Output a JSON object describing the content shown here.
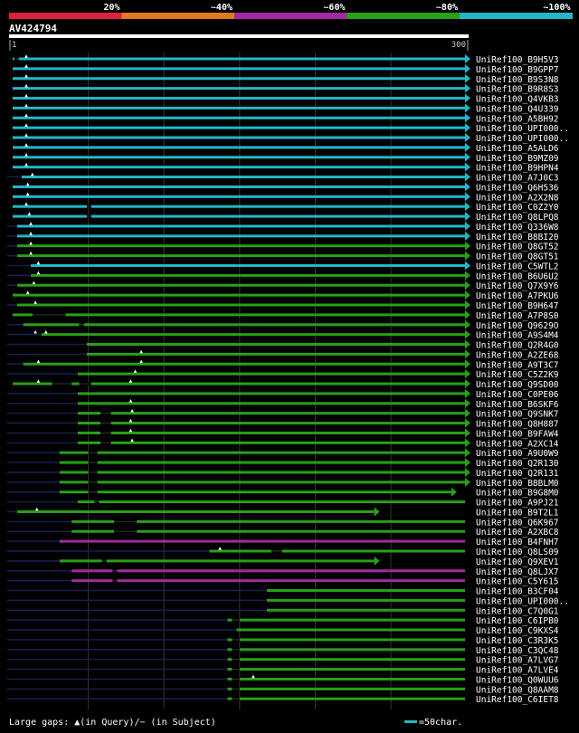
{
  "identity_scale": {
    "labels": [
      "20%",
      "~40%",
      "~60%",
      "~80%",
      "~100%"
    ],
    "colors": [
      "#e0203c",
      "#e07a20",
      "#a02a9e",
      "#28a018",
      "#20b8c8"
    ]
  },
  "query": {
    "name": "AV424794",
    "start": "1",
    "end": "300",
    "length": 300
  },
  "legend": {
    "gaps": "Large gaps: ▲(in Query)/− (in Subject)",
    "scale": "=50char."
  },
  "hits": [
    {
      "name": "UniRef100_B9H5V3",
      "s": 1,
      "e": 300,
      "c": "cyan",
      "a": true,
      "g": [
        [
          2,
          5
        ]
      ],
      "t": [
        10
      ]
    },
    {
      "name": "UniRef100_B9GPP7",
      "s": 1,
      "e": 300,
      "c": "cyan",
      "a": true,
      "g": [],
      "t": [
        10
      ]
    },
    {
      "name": "UniRef100_B9S3N8",
      "s": 1,
      "e": 300,
      "c": "cyan",
      "a": true,
      "g": [],
      "t": [
        10
      ]
    },
    {
      "name": "UniRef100_B9R8S3",
      "s": 1,
      "e": 300,
      "c": "cyan",
      "a": true,
      "g": [],
      "t": [
        10
      ]
    },
    {
      "name": "UniRef100_Q4VKB3",
      "s": 1,
      "e": 300,
      "c": "cyan",
      "a": true,
      "g": [],
      "t": [
        10
      ]
    },
    {
      "name": "UniRef100_Q4U339",
      "s": 1,
      "e": 300,
      "c": "cyan",
      "a": true,
      "g": [],
      "t": [
        10
      ]
    },
    {
      "name": "UniRef100_A5BH92",
      "s": 1,
      "e": 300,
      "c": "cyan",
      "a": true,
      "g": [],
      "t": [
        10
      ]
    },
    {
      "name": "UniRef100_UPI000..",
      "s": 1,
      "e": 300,
      "c": "cyan",
      "a": true,
      "g": [],
      "t": [
        10
      ]
    },
    {
      "name": "UniRef100_UPI000..",
      "s": 1,
      "e": 300,
      "c": "cyan",
      "a": true,
      "g": [],
      "t": [
        10
      ]
    },
    {
      "name": "UniRef100_A5ALD6",
      "s": 1,
      "e": 300,
      "c": "cyan",
      "a": true,
      "g": [],
      "t": [
        10
      ]
    },
    {
      "name": "UniRef100_B9MZ09",
      "s": 1,
      "e": 300,
      "c": "cyan",
      "a": true,
      "g": [],
      "t": [
        10
      ]
    },
    {
      "name": "UniRef100_B9HPN4",
      "s": 1,
      "e": 300,
      "c": "cyan",
      "a": true,
      "g": [],
      "t": [
        10
      ]
    },
    {
      "name": "UniRef100_A7J0C3",
      "s": 7,
      "e": 300,
      "c": "cyan",
      "a": true,
      "g": [],
      "t": [
        14
      ]
    },
    {
      "name": "UniRef100_Q6H536",
      "s": 1,
      "e": 300,
      "c": "cyan",
      "a": true,
      "g": [],
      "t": [
        11
      ]
    },
    {
      "name": "UniRef100_A2X2N8",
      "s": 1,
      "e": 300,
      "c": "cyan",
      "a": true,
      "g": [],
      "t": [
        11
      ]
    },
    {
      "name": "UniRef100_C0Z2Y0",
      "s": 1,
      "e": 300,
      "c": "cyan",
      "a": true,
      "g": [
        [
          50,
          53
        ]
      ],
      "t": [
        10
      ]
    },
    {
      "name": "UniRef100_Q8LPQ8",
      "s": 1,
      "e": 300,
      "c": "cyan",
      "a": true,
      "g": [
        [
          50,
          53
        ]
      ],
      "t": [
        12
      ]
    },
    {
      "name": "UniRef100_Q336W8",
      "s": 4,
      "e": 300,
      "c": "cyan",
      "a": true,
      "g": [],
      "t": [
        13
      ]
    },
    {
      "name": "UniRef100_B8BI20",
      "s": 4,
      "e": 300,
      "c": "cyan",
      "a": true,
      "g": [],
      "t": [
        13
      ]
    },
    {
      "name": "UniRef100_Q8GT52",
      "s": 4,
      "e": 300,
      "c": "green",
      "a": true,
      "g": [],
      "t": [
        13
      ]
    },
    {
      "name": "UniRef100_Q8GT51",
      "s": 4,
      "e": 300,
      "c": "green",
      "a": true,
      "g": [],
      "t": [
        13
      ]
    },
    {
      "name": "UniRef100_C5WTL2",
      "s": 13,
      "e": 300,
      "c": "cyan",
      "a": true,
      "g": [],
      "t": [
        18
      ]
    },
    {
      "name": "UniRef100_B6U6U2",
      "s": 13,
      "e": 300,
      "c": "green",
      "a": true,
      "g": [],
      "t": [
        18
      ]
    },
    {
      "name": "UniRef100_Q7X9Y6",
      "s": 4,
      "e": 300,
      "c": "green",
      "a": true,
      "g": [],
      "t": [
        15
      ]
    },
    {
      "name": "UniRef100_A7PKU6",
      "s": 1,
      "e": 300,
      "c": "green",
      "a": true,
      "g": [],
      "t": [
        11
      ]
    },
    {
      "name": "UniRef100_B9H647",
      "s": 4,
      "e": 300,
      "c": "green",
      "a": true,
      "g": [],
      "t": [
        16
      ]
    },
    {
      "name": "UniRef100_A7P8S0",
      "s": 1,
      "e": 300,
      "c": "green",
      "a": true,
      "g": [
        [
          14,
          36
        ]
      ],
      "t": []
    },
    {
      "name": "UniRef100_Q9629O",
      "s": 8,
      "e": 300,
      "c": "green",
      "a": true,
      "g": [
        [
          45,
          48
        ]
      ],
      "t": []
    },
    {
      "name": "UniRef100_A9S4M4",
      "s": 20,
      "e": 300,
      "c": "green",
      "a": true,
      "g": [],
      "t": [
        16,
        23
      ]
    },
    {
      "name": "UniRef100_Q2R4G0",
      "s": 50,
      "e": 300,
      "c": "green",
      "a": true,
      "g": [],
      "t": []
    },
    {
      "name": "UniRef100_A2ZE68",
      "s": 50,
      "e": 300,
      "c": "green",
      "a": true,
      "g": [],
      "t": [
        86
      ]
    },
    {
      "name": "UniRef100_A9T3C7",
      "s": 8,
      "e": 300,
      "c": "green",
      "a": true,
      "g": [],
      "t": [
        18,
        86
      ]
    },
    {
      "name": "UniRef100_C5Z2K9",
      "s": 44,
      "e": 300,
      "c": "green",
      "a": true,
      "g": [],
      "t": [
        82
      ]
    },
    {
      "name": "UniRef100_Q9SD00",
      "s": 1,
      "e": 300,
      "c": "green",
      "a": true,
      "g": [
        [
          27,
          40
        ],
        [
          45,
          53
        ]
      ],
      "t": [
        18,
        79
      ]
    },
    {
      "name": "UniRef100_C0PE06",
      "s": 44,
      "e": 300,
      "c": "green",
      "a": true,
      "g": [],
      "t": []
    },
    {
      "name": "UniRef100_B6SKF6",
      "s": 44,
      "e": 300,
      "c": "green",
      "a": true,
      "g": [],
      "t": [
        79
      ]
    },
    {
      "name": "UniRef100_Q9SNK7",
      "s": 44,
      "e": 300,
      "c": "green",
      "a": true,
      "g": [
        [
          59,
          66
        ]
      ],
      "t": [
        80
      ]
    },
    {
      "name": "UniRef100_Q8H887",
      "s": 44,
      "e": 300,
      "c": "green",
      "a": true,
      "g": [
        [
          59,
          66
        ]
      ],
      "t": [
        79
      ]
    },
    {
      "name": "UniRef100_B9FAW4",
      "s": 44,
      "e": 300,
      "c": "green",
      "a": true,
      "g": [
        [
          59,
          66
        ]
      ],
      "t": [
        79
      ]
    },
    {
      "name": "UniRef100_A2XC14",
      "s": 44,
      "e": 300,
      "c": "green",
      "a": true,
      "g": [
        [
          59,
          66
        ]
      ],
      "t": [
        80
      ]
    },
    {
      "name": "UniRef100_A9U0W9",
      "s": 32,
      "e": 300,
      "c": "green",
      "a": true,
      "g": [
        [
          51,
          57
        ]
      ],
      "t": []
    },
    {
      "name": "UniRef100_Q2R130",
      "s": 32,
      "e": 300,
      "c": "green",
      "a": true,
      "g": [
        [
          51,
          57
        ]
      ],
      "t": []
    },
    {
      "name": "UniRef100_Q2R131",
      "s": 32,
      "e": 300,
      "c": "green",
      "a": true,
      "g": [
        [
          51,
          57
        ]
      ],
      "t": []
    },
    {
      "name": "UniRef100_B8BLM0",
      "s": 32,
      "e": 300,
      "c": "green",
      "a": true,
      "g": [
        [
          51,
          57
        ]
      ],
      "t": []
    },
    {
      "name": "UniRef100_B9G8M0",
      "s": 32,
      "e": 291,
      "c": "green",
      "a": true,
      "g": [
        [
          51,
          57
        ]
      ],
      "t": []
    },
    {
      "name": "UniRef100_A9PJ21",
      "s": 44,
      "e": 300,
      "c": "green",
      "a": false,
      "g": [
        [
          55,
          58
        ]
      ],
      "t": []
    },
    {
      "name": "UniRef100_B9T2L1",
      "s": 4,
      "e": 240,
      "c": "green",
      "a": true,
      "g": [],
      "t": [
        17
      ]
    },
    {
      "name": "UniRef100_Q6K967",
      "s": 40,
      "e": 300,
      "c": "green",
      "a": false,
      "g": [
        [
          68,
          83
        ]
      ],
      "t": []
    },
    {
      "name": "UniRef100_A2XBC8",
      "s": 40,
      "e": 300,
      "c": "green",
      "a": false,
      "g": [
        [
          68,
          83
        ]
      ],
      "t": []
    },
    {
      "name": "UniRef100_B4FNH7",
      "s": 32,
      "e": 300,
      "c": "purple",
      "a": false,
      "g": [],
      "t": []
    },
    {
      "name": "UniRef100_Q8LS09",
      "s": 131,
      "e": 300,
      "c": "green",
      "a": false,
      "g": [
        [
          172,
          179
        ]
      ],
      "t": [
        138
      ]
    },
    {
      "name": "UniRef100_Q9XEV1",
      "s": 32,
      "e": 240,
      "c": "green",
      "a": true,
      "g": [
        [
          60,
          63
        ]
      ],
      "t": []
    },
    {
      "name": "UniRef100_Q8LJX7",
      "s": 40,
      "e": 300,
      "c": "purple",
      "a": false,
      "g": [
        [
          67,
          70
        ]
      ],
      "t": []
    },
    {
      "name": "UniRef100_C5Y615",
      "s": 40,
      "e": 300,
      "c": "purple",
      "a": false,
      "g": [
        [
          67,
          70
        ]
      ],
      "t": []
    },
    {
      "name": "UniRef100_B3CF04",
      "s": 169,
      "e": 300,
      "c": "green",
      "a": false,
      "g": [],
      "t": []
    },
    {
      "name": "UniRef100_UPI000..",
      "s": 169,
      "e": 300,
      "c": "green",
      "a": false,
      "g": [],
      "t": []
    },
    {
      "name": "UniRef100_C7Q0G1",
      "s": 169,
      "e": 300,
      "c": "green",
      "a": false,
      "g": [],
      "t": []
    },
    {
      "name": "UniRef100_C6IPB0",
      "s": 143,
      "e": 300,
      "c": "green",
      "a": false,
      "g": [
        [
          146,
          151
        ]
      ],
      "t": []
    },
    {
      "name": "UniRef100_C9KXS4",
      "s": 149,
      "e": 300,
      "c": "green",
      "a": false,
      "g": [],
      "t": []
    },
    {
      "name": "UniRef100_C3R3K5",
      "s": 143,
      "e": 300,
      "c": "green",
      "a": false,
      "g": [
        [
          146,
          151
        ]
      ],
      "t": []
    },
    {
      "name": "UniRef100_C3QC48",
      "s": 143,
      "e": 300,
      "c": "green",
      "a": false,
      "g": [
        [
          146,
          151
        ]
      ],
      "t": []
    },
    {
      "name": "UniRef100_A7LVG7",
      "s": 143,
      "e": 300,
      "c": "green",
      "a": false,
      "g": [
        [
          146,
          151
        ]
      ],
      "t": []
    },
    {
      "name": "UniRef100_A7LVE4",
      "s": 143,
      "e": 300,
      "c": "green",
      "a": false,
      "g": [
        [
          146,
          151
        ]
      ],
      "t": []
    },
    {
      "name": "UniRef100_Q0WUU6",
      "s": 143,
      "e": 300,
      "c": "green",
      "a": false,
      "g": [
        [
          146,
          151
        ]
      ],
      "t": [
        160
      ]
    },
    {
      "name": "UniRef100_Q8AAM8",
      "s": 143,
      "e": 300,
      "c": "green",
      "a": false,
      "g": [
        [
          146,
          151
        ]
      ],
      "t": []
    },
    {
      "name": "UniRef100_C6IET8",
      "s": 143,
      "e": 300,
      "c": "green",
      "a": false,
      "g": [
        [
          146,
          151
        ]
      ],
      "t": []
    }
  ]
}
